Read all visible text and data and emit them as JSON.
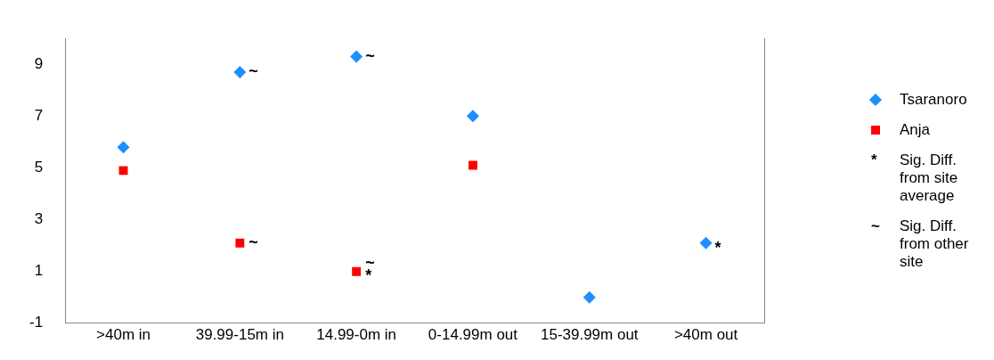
{
  "chart_data": {
    "type": "scatter",
    "categories": [
      ">40m in",
      "39.99-15m in",
      "14.99-0m in",
      "0-14.99m out",
      "15-39.99m out",
      ">40m out"
    ],
    "series": [
      {
        "name": "Tsaranoro",
        "color": "#1e8fff",
        "marker": "diamond",
        "values": [
          5.8,
          8.7,
          9.3,
          7.0,
          0.0,
          2.1
        ]
      },
      {
        "name": "Anja",
        "color": "#ff0000",
        "marker": "square",
        "values": [
          4.9,
          2.1,
          1.0,
          5.1,
          null,
          null
        ]
      }
    ],
    "ylim": [
      -1,
      10
    ],
    "yticks": [
      -1,
      1,
      3,
      5,
      7,
      9
    ],
    "grid": false,
    "legend": "right",
    "annotations": [
      {
        "text": "~",
        "x": "39.99-15m in",
        "y": 8.7
      },
      {
        "text": "~",
        "x": "14.99-0m in",
        "y": 9.3
      },
      {
        "text": "~",
        "x": "39.99-15m in",
        "y": 2.1
      },
      {
        "text": "~",
        "x": "14.99-0m in",
        "y": 1.3
      },
      {
        "text": "*",
        "x": "14.99-0m in",
        "y": 0.8
      },
      {
        "text": "*",
        "x": ">40m out",
        "y": 1.9
      },
      "* Sig. Diff. from site average",
      "~ Sig. Diff. from other site"
    ]
  }
}
